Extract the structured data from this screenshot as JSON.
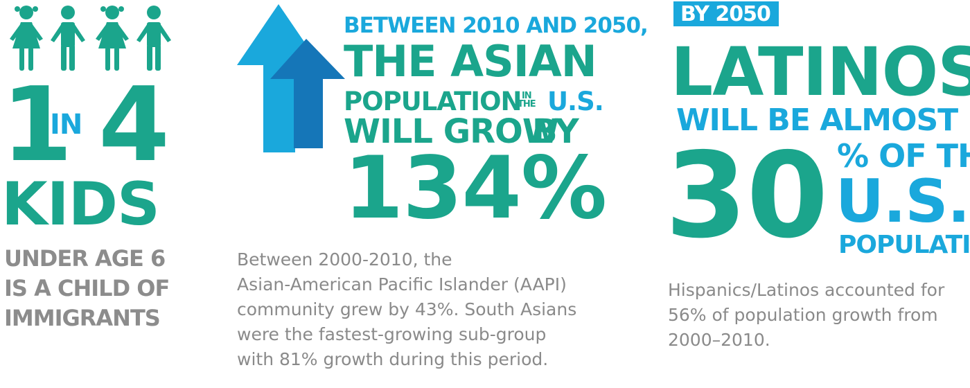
{
  "colors": {
    "teal": "#1ba58c",
    "blue": "#1aa8dc",
    "gray": "#8c8c8c",
    "arrow_dark": "#1576b8"
  },
  "kids_panel": {
    "icons": [
      "girl-icon",
      "boy-icon",
      "girl-icon",
      "boy-icon"
    ],
    "one": "1",
    "in": "IN",
    "four": "4",
    "kids": "KIDS",
    "caption_line1": "UNDER AGE 6",
    "caption_line2": "IS A CHILD OF",
    "caption_line3": "IMMIGRANTS"
  },
  "asian_panel": {
    "icon": "up-arrows-icon",
    "line1": "BETWEEN 2010 AND 2050,",
    "line2": "THE ASIAN",
    "line3a": "POPULATION",
    "in": "IN",
    "the": "THE",
    "line3b": "U.S.",
    "line4a": "WILL GROW",
    "line4b": "BY",
    "value": "134%",
    "body_line1": "Between 2000-2010, the",
    "body_line2": "Asian-American Pacific Islander (AAPI)",
    "body_line3": "community grew by 43%. South Asians",
    "body_line4": "were the fastest-growing sub-group",
    "body_line5": "with 81% growth during this period."
  },
  "latino_panel": {
    "badge": "BY 2050",
    "line1": "LATINOS",
    "line2": "WILL BE ALMOST",
    "value": "30",
    "pct_line": "% OF THE",
    "us": "U.S.",
    "population": "POPULATION",
    "body_line1": "Hispanics/Latinos accounted for",
    "body_line2": "56% of population growth from",
    "body_line3": "2000–2010."
  }
}
